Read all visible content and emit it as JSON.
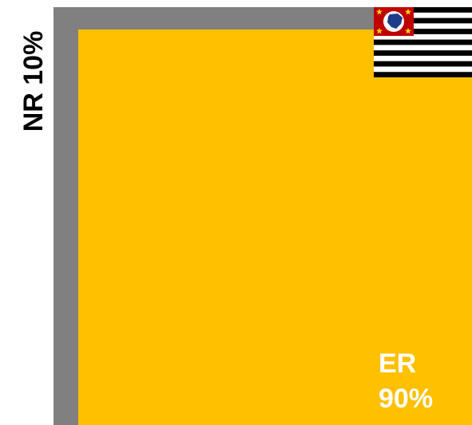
{
  "chart_data": {
    "type": "area",
    "title": "",
    "total": 100,
    "segments": [
      {
        "name": "NR",
        "label": "NR 10%",
        "value": 10,
        "color": "#808080"
      },
      {
        "name": "ER",
        "label_line1": "ER",
        "label_line2": "90%",
        "value": 90,
        "color": "#FFC000"
      }
    ]
  },
  "flag": {
    "icon": "sao-paulo-state-flag-icon",
    "stripe_colors": [
      "#000000",
      "#ffffff"
    ],
    "canton_color": "#C00000",
    "disc_color": "#ffffff",
    "map_color": "#1f3c88",
    "star_color": "#FFD700"
  }
}
